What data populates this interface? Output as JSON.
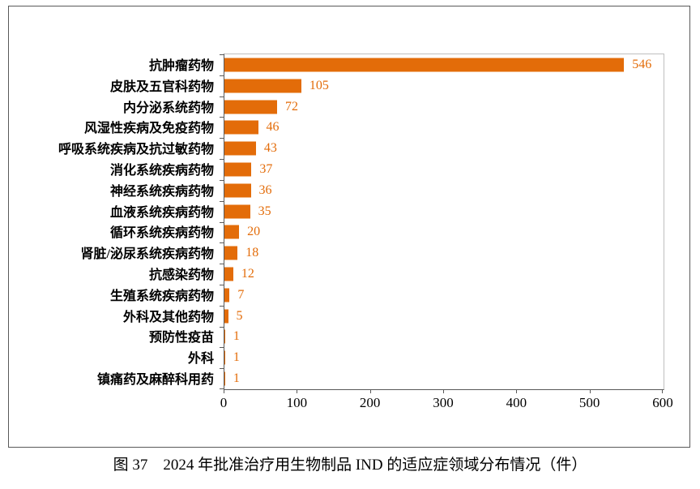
{
  "chart_data": {
    "type": "bar",
    "orientation": "horizontal",
    "categories": [
      "抗肿瘤药物",
      "皮肤及五官科药物",
      "内分泌系统药物",
      "风湿性疾病及免疫药物",
      "呼吸系统疾病及抗过敏药物",
      "消化系统疾病药物",
      "神经系统疾病药物",
      "血液系统疾病药物",
      "循环系统疾病药物",
      "肾脏/泌尿系统疾病药物",
      "抗感染药物",
      "生殖系统疾病药物",
      "外科及其他药物",
      "预防性疫苗",
      "外科",
      "镇痛药及麻醉科用药"
    ],
    "values": [
      546,
      105,
      72,
      46,
      43,
      37,
      36,
      35,
      20,
      18,
      12,
      7,
      5,
      1,
      1,
      1
    ],
    "xlim": [
      0,
      600
    ],
    "x_ticks": [
      0,
      100,
      200,
      300,
      400,
      500,
      600
    ],
    "bar_color": "#E36C09",
    "value_label_color": "#E36C09",
    "grid": false,
    "legend": false,
    "title": "",
    "caption": "图 37　2024 年批准治疗用生物制品 IND 的适应症领域分布情况（件）"
  }
}
